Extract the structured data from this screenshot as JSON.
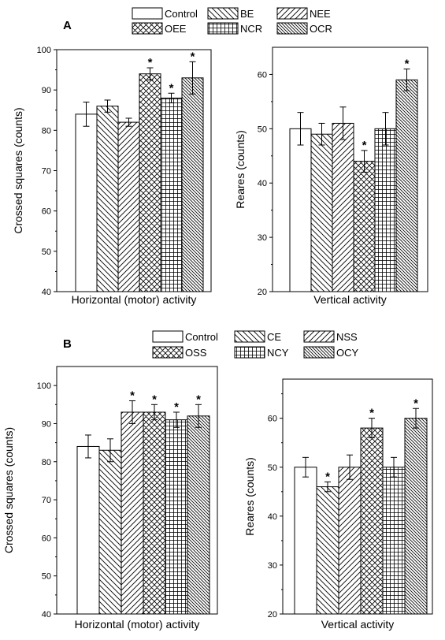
{
  "panels": [
    {
      "letter": "A",
      "legend": [
        "Control",
        "BE",
        "NEE",
        "OEE",
        "NCR",
        "OCR"
      ],
      "charts": [
        {
          "type": "bar",
          "xlabel": "Horizontal (motor) activity",
          "ylabel": "Crossed squares (counts)",
          "ylim": [
            40,
            100
          ],
          "yticks": [
            40,
            50,
            60,
            70,
            80,
            90,
            100
          ],
          "values": [
            84,
            86,
            82,
            94,
            88,
            93
          ],
          "errors": [
            3,
            1.5,
            1,
            1.5,
            1.2,
            4
          ],
          "significant": [
            false,
            false,
            false,
            true,
            true,
            true
          ],
          "grid": false
        },
        {
          "type": "bar",
          "xlabel": "Vertical activity",
          "ylabel": "Reares (counts)",
          "ylim": [
            20,
            65
          ],
          "yticks": [
            20,
            30,
            40,
            50,
            60
          ],
          "values": [
            50,
            49,
            51,
            44,
            50,
            59
          ],
          "errors": [
            3,
            2,
            3,
            2,
            3,
            2
          ],
          "significant": [
            false,
            false,
            false,
            true,
            false,
            true
          ],
          "grid": false
        }
      ]
    },
    {
      "letter": "B",
      "legend": [
        "Control",
        "CE",
        "NSS",
        "OSS",
        "NCY",
        "OCY"
      ],
      "charts": [
        {
          "type": "bar",
          "xlabel": "Horizontal (motor) activity",
          "ylabel": "Crossed squares (counts)",
          "ylim": [
            40,
            105
          ],
          "yticks": [
            40,
            50,
            60,
            70,
            80,
            90,
            100
          ],
          "values": [
            84,
            83,
            93,
            93,
            91,
            92
          ],
          "errors": [
            3,
            3,
            3,
            2,
            2,
            3
          ],
          "significant": [
            false,
            false,
            true,
            true,
            true,
            true
          ],
          "grid": false
        },
        {
          "type": "bar",
          "xlabel": "Vertical activity",
          "ylabel": "Reares (counts)",
          "ylim": [
            20,
            68
          ],
          "yticks": [
            20,
            30,
            40,
            50,
            60
          ],
          "values": [
            50,
            46,
            50,
            58,
            50,
            60
          ],
          "errors": [
            2,
            1,
            2.5,
            2,
            2,
            2
          ],
          "significant": [
            false,
            true,
            false,
            true,
            false,
            true
          ],
          "grid": false
        }
      ]
    }
  ],
  "significance_marker": "*",
  "bar_patterns": [
    "blank",
    "back-diagonal",
    "diagonal",
    "crosshatch",
    "grid",
    "dense-back-diagonal"
  ]
}
